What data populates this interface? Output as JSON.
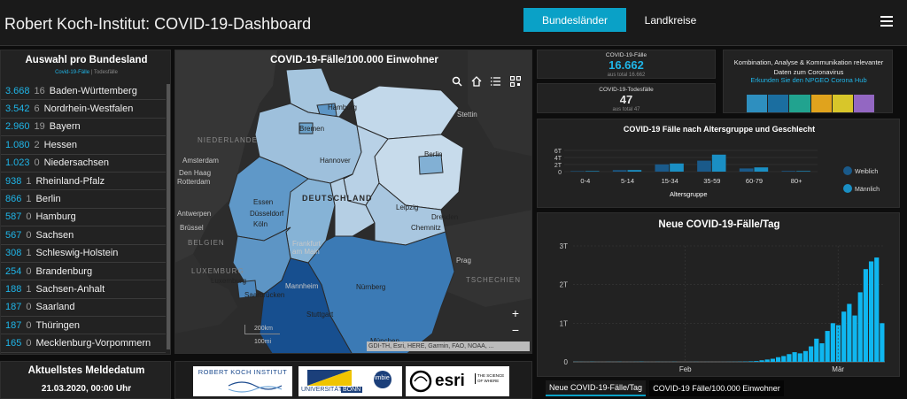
{
  "header": {
    "title": "Robert Koch-Institut: COVID-19-Dashboard",
    "nav_active": "Bundesländer",
    "nav_other": "Landkreise"
  },
  "left_panel": {
    "title": "Auswahl pro Bundesland",
    "legend_cases": "Covid-19-Fälle",
    "legend_sep": " | ",
    "legend_deaths": "Todesfälle",
    "states": [
      {
        "cases": "3.668",
        "deaths": "16",
        "name": "Baden-Württemberg"
      },
      {
        "cases": "3.542",
        "deaths": "6",
        "name": "Nordrhein-Westfalen"
      },
      {
        "cases": "2.960",
        "deaths": "19",
        "name": "Bayern"
      },
      {
        "cases": "1.080",
        "deaths": "2",
        "name": "Hessen"
      },
      {
        "cases": "1.023",
        "deaths": "0",
        "name": "Niedersachsen"
      },
      {
        "cases": "938",
        "deaths": "1",
        "name": "Rheinland-Pfalz"
      },
      {
        "cases": "866",
        "deaths": "1",
        "name": "Berlin"
      },
      {
        "cases": "587",
        "deaths": "0",
        "name": "Hamburg"
      },
      {
        "cases": "567",
        "deaths": "0",
        "name": "Sachsen"
      },
      {
        "cases": "308",
        "deaths": "1",
        "name": "Schleswig-Holstein"
      },
      {
        "cases": "254",
        "deaths": "0",
        "name": "Brandenburg"
      },
      {
        "cases": "188",
        "deaths": "1",
        "name": "Sachsen-Anhalt"
      },
      {
        "cases": "187",
        "deaths": "0",
        "name": "Saarland"
      },
      {
        "cases": "187",
        "deaths": "0",
        "name": "Thüringen"
      },
      {
        "cases": "165",
        "deaths": "0",
        "name": "Mecklenburg-Vorpommern"
      }
    ]
  },
  "meldedatum": {
    "title": "Aktuellstes Meldedatum",
    "value": "21.03.2020, 00:00 Uhr"
  },
  "map": {
    "title": "COVID-19-Fälle/100.000 Einwohner",
    "country_label": "DEUTSCHLAND",
    "city_labels": {
      "hamburg": "Hamburg",
      "bremen": "Bremen",
      "stettin": "Stettin",
      "hannover": "Hannover",
      "berlin": "Berlin",
      "amsterdam": "Amsterdam",
      "den_haag": "Den Haag",
      "rotterdam": "Rotterdam",
      "essen": "Essen",
      "duesseldorf": "Düsseldorf",
      "koeln": "Köln",
      "antwerpen": "Antwerpen",
      "bruessel": "Brüssel",
      "leipzig": "Leipzig",
      "dresden": "Dresden",
      "chemnitz": "Chemnitz",
      "frankfurt": "Frankfurt am Main",
      "prag": "Prag",
      "luxemburg": "Luxemburg",
      "mannheim": "Mannheim",
      "nuernberg": "Nürnberg",
      "saarbruecken": "Saarbrücken",
      "stuttgart": "Stuttgart",
      "muenchen": "München"
    },
    "region_labels": {
      "niederlande": "NIEDERLANDE",
      "belgien": "BELGIEN",
      "luxemburg_country": "LUXEMBURG",
      "tschechien": "TSCHECHIEN"
    },
    "scale_km": "200km",
    "scale_mi": "100mi",
    "attribution": "GDI-TH, Esri, HERE, Garmin, FAO, NOAA, ..."
  },
  "logos": {
    "rki": "ROBERT KOCH INSTITUT",
    "uni": "UNIVERSITÄT",
    "bonn": "BONN",
    "imbie": "imbie",
    "esri": "esri",
    "esri_tag": "THE SCIENCE OF WHERE"
  },
  "kpis": {
    "cases": {
      "title": "COVID-19-Fälle",
      "value": "16.662",
      "sub": "aus total 16.662",
      "color": "#1fb5e8"
    },
    "deaths": {
      "title": "COVID-19-Todesfälle",
      "value": "47",
      "sub": "aus total 47",
      "color": "#e6e6e6"
    }
  },
  "info": {
    "text": "Kombination, Analyse & Kommunikation relevanter Daten zum Coronavirus",
    "link": "Erkunden Sie den NPGEO Corona Hub"
  },
  "chart_data": [
    {
      "type": "bar",
      "title": "COVID-19 Fälle nach Altersgruppe und Geschlecht",
      "xlabel": "Altersgruppe",
      "categories": [
        "0-4",
        "5-14",
        "15-34",
        "35-59",
        "60-79",
        "80+"
      ],
      "yticks": [
        "0",
        "2T",
        "4T",
        "6T"
      ],
      "ylim": [
        0,
        6000
      ],
      "series": [
        {
          "name": "Weiblich",
          "color": "#1a5a8a",
          "values": [
            140,
            420,
            2050,
            3100,
            900,
            190
          ]
        },
        {
          "name": "Männlich",
          "color": "#1a8fc4",
          "values": [
            160,
            450,
            2300,
            4800,
            1200,
            170
          ]
        }
      ],
      "legend": "right"
    },
    {
      "type": "bar",
      "title": "Neue COVID-19-Fälle/Tag",
      "x_tick_labels": [
        "Feb",
        "Mär"
      ],
      "yticks": [
        "0",
        "1T",
        "2T",
        "3T"
      ],
      "ylim": [
        0,
        3000
      ],
      "color": "#0fb7f0",
      "values": [
        3,
        2,
        1,
        4,
        1,
        0,
        2,
        1,
        3,
        0,
        1,
        2,
        5,
        1,
        0,
        2,
        1,
        1,
        3,
        0,
        0,
        1,
        2,
        0,
        1,
        0,
        0,
        1,
        2,
        3,
        5,
        8,
        14,
        20,
        40,
        60,
        80,
        120,
        150,
        200,
        250,
        220,
        280,
        400,
        600,
        480,
        800,
        1000,
        950,
        1300,
        1500,
        1200,
        1800,
        2400,
        2600,
        2700,
        1000
      ],
      "grid": true
    }
  ],
  "tabs": {
    "daily": "Neue COVID-19-Fälle/Tag",
    "map": "COVID-19 Fälle/100.000 Einwohner"
  }
}
